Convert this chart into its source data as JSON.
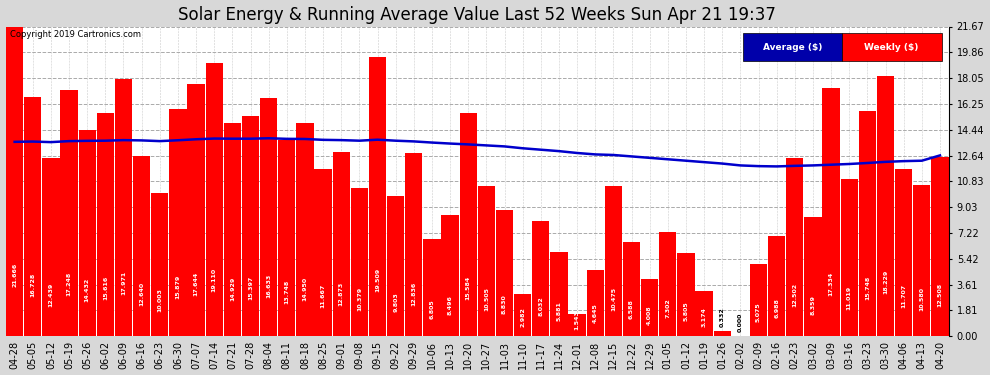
{
  "title": "Solar Energy & Running Average Value Last 52 Weeks Sun Apr 21 19:37",
  "copyright": "Copyright 2019 Cartronics.com",
  "yticks": [
    0.0,
    1.81,
    3.61,
    5.42,
    7.22,
    9.03,
    10.83,
    12.64,
    14.44,
    16.25,
    18.05,
    19.86,
    21.67
  ],
  "bar_color": "#ff0000",
  "avg_line_color": "#0000cc",
  "background_color": "#d8d8d8",
  "plot_bg_color": "#ffffff",
  "categories": [
    "04-28",
    "05-05",
    "05-12",
    "05-19",
    "05-26",
    "06-02",
    "06-09",
    "06-16",
    "06-23",
    "06-30",
    "07-07",
    "07-14",
    "07-21",
    "07-28",
    "08-04",
    "08-11",
    "08-18",
    "08-25",
    "09-01",
    "09-08",
    "09-15",
    "09-22",
    "09-29",
    "10-06",
    "10-13",
    "10-20",
    "10-27",
    "11-03",
    "11-10",
    "11-17",
    "11-24",
    "12-01",
    "12-08",
    "12-15",
    "12-22",
    "12-29",
    "01-05",
    "01-12",
    "01-19",
    "01-26",
    "02-02",
    "02-09",
    "02-16",
    "02-23",
    "03-02",
    "03-09",
    "03-16",
    "03-23",
    "03-30",
    "04-06",
    "04-13",
    "04-20"
  ],
  "weekly_values": [
    21.666,
    16.728,
    12.439,
    17.248,
    14.432,
    15.616,
    17.971,
    12.64,
    10.003,
    15.879,
    17.644,
    19.11,
    14.929,
    15.397,
    16.633,
    13.748,
    14.95,
    11.667,
    12.873,
    10.379,
    19.509,
    9.803,
    12.836,
    6.805,
    8.496,
    15.584,
    10.505,
    8.83,
    2.982,
    8.032,
    5.881,
    1.543,
    4.645,
    10.475,
    6.588,
    4.008,
    7.302,
    5.805,
    3.174,
    0.332,
    0.0,
    5.075,
    6.988,
    12.502,
    8.359,
    17.334,
    11.019,
    15.748,
    18.229,
    11.707,
    10.58,
    12.508
  ],
  "avg_values": [
    13.6,
    13.62,
    13.58,
    13.65,
    13.67,
    13.68,
    13.72,
    13.7,
    13.65,
    13.71,
    13.78,
    13.83,
    13.82,
    13.82,
    13.85,
    13.81,
    13.8,
    13.74,
    13.72,
    13.68,
    13.75,
    13.68,
    13.63,
    13.55,
    13.48,
    13.42,
    13.35,
    13.28,
    13.15,
    13.05,
    12.95,
    12.82,
    12.72,
    12.68,
    12.58,
    12.48,
    12.38,
    12.28,
    12.18,
    12.08,
    11.95,
    11.9,
    11.88,
    11.92,
    11.95,
    12.0,
    12.05,
    12.12,
    12.2,
    12.25,
    12.28,
    12.65
  ],
  "ylim": [
    0,
    21.67
  ],
  "title_fontsize": 12,
  "tick_fontsize": 7,
  "bar_width": 0.95
}
